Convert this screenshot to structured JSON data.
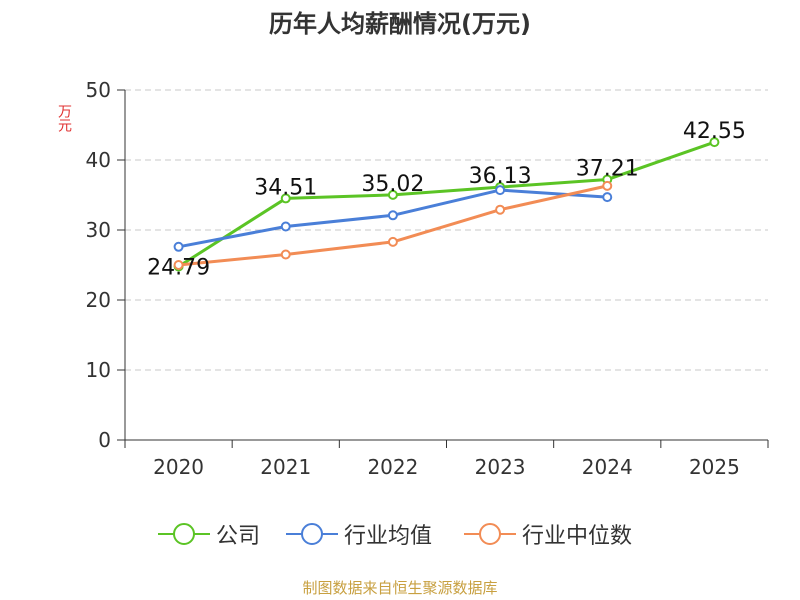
{
  "chart_data": {
    "type": "line",
    "title": "历年人均薪酬情况(万元)",
    "ylabel": "万元",
    "xlabel": "",
    "ylim": [
      0,
      50
    ],
    "yticks": [
      0,
      10,
      20,
      30,
      40,
      50
    ],
    "categories": [
      "2020",
      "2021",
      "2022",
      "2023",
      "2024",
      "2025"
    ],
    "grid": true,
    "legend_position": "bottom",
    "series": [
      {
        "name": "公司",
        "color": "#5bc425",
        "values": [
          24.79,
          34.51,
          35.02,
          36.13,
          37.21,
          42.55
        ],
        "show_labels": true
      },
      {
        "name": "行业均值",
        "color": "#4a7fd8",
        "values": [
          27.6,
          30.5,
          32.1,
          35.7,
          34.7,
          null
        ],
        "show_labels": false
      },
      {
        "name": "行业中位数",
        "color": "#f28c55",
        "values": [
          25.0,
          26.5,
          28.3,
          32.9,
          36.3,
          null
        ],
        "show_labels": false
      }
    ]
  },
  "labels": {
    "data_labels": [
      "24.79",
      "34.51",
      "35.02",
      "36.13",
      "37.21",
      "42.55"
    ]
  },
  "source": "制图数据来自恒生聚源数据库"
}
